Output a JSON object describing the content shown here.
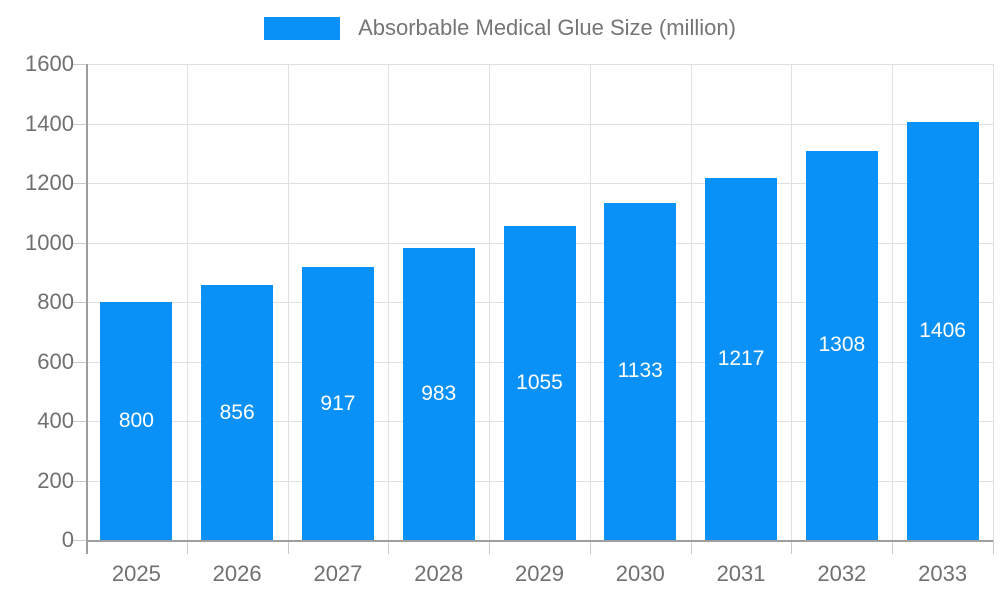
{
  "chart_data": {
    "type": "bar",
    "title": "Absorbable Medical Glue Size (million)",
    "categories": [
      "2025",
      "2026",
      "2027",
      "2028",
      "2029",
      "2030",
      "2031",
      "2032",
      "2033"
    ],
    "values": [
      800,
      856,
      917,
      983,
      1055,
      1133,
      1217,
      1308,
      1406
    ],
    "xlabel": "",
    "ylabel": "",
    "ylim": [
      0,
      1600
    ],
    "ytick_step": 200,
    "ytick_labels": [
      "0",
      "200",
      "400",
      "600",
      "800",
      "1000",
      "1200",
      "1400",
      "1600"
    ],
    "grid": true,
    "legend_position": "top-center",
    "value_labels": "inside-middle",
    "colors": {
      "bar": "#0A91F8",
      "value_label": "#ffffff",
      "axis_text": "#707070",
      "legend_text": "#757575",
      "gridline": "#e0e0e0",
      "tick": "#c9c9c9",
      "axis_line": "#9e9e9e",
      "background": "#ffffff"
    }
  }
}
